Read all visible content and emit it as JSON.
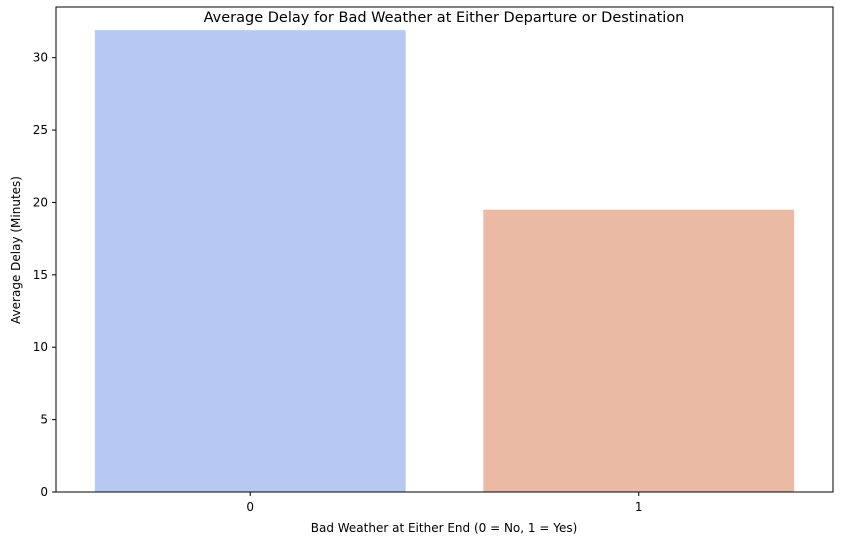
{
  "chart_data": {
    "type": "bar",
    "title": "Average Delay for Bad Weather at Either Departure or Destination",
    "xlabel": "Bad Weather at Either End (0 = No, 1 = Yes)",
    "ylabel": "Average Delay (Minutes)",
    "categories": [
      "0",
      "1"
    ],
    "values": [
      31.9,
      19.5
    ],
    "colors": [
      "#b5c9f2",
      "#eabaa5"
    ],
    "ylim": [
      0,
      33.5
    ],
    "yticks": [
      0,
      5,
      10,
      15,
      20,
      25,
      30
    ],
    "grid": false,
    "legend": "none"
  }
}
